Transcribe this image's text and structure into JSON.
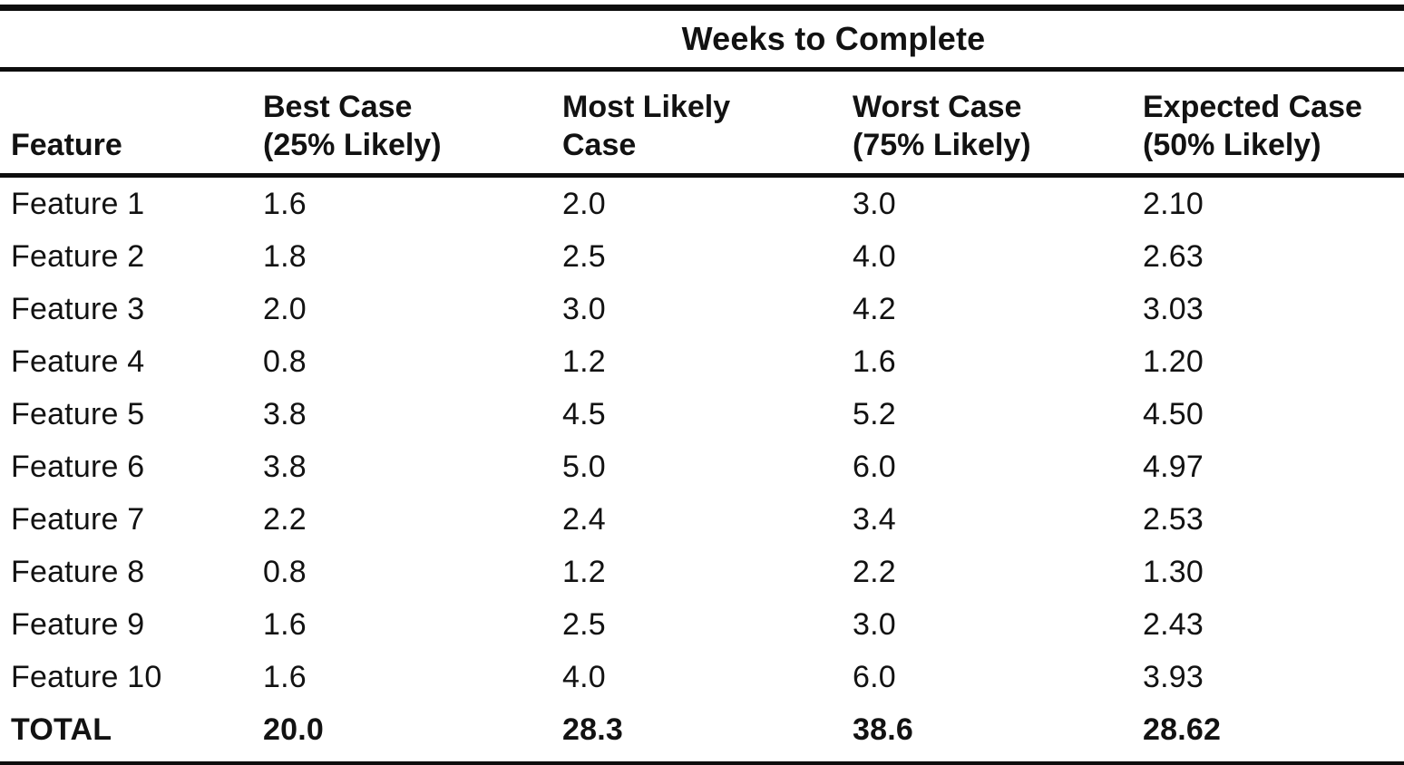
{
  "table": {
    "spanner_title": "Weeks to Complete",
    "columns": [
      {
        "label": "Feature"
      },
      {
        "line1": "Best Case",
        "line2": "(25% Likely)"
      },
      {
        "line1": "Most Likely",
        "line2": "Case"
      },
      {
        "line1": "Worst Case",
        "line2": "(75% Likely)"
      },
      {
        "line1": "Expected Case",
        "line2": "(50% Likely)"
      }
    ],
    "rows": [
      {
        "feature": "Feature 1",
        "best": "1.6",
        "most_likely": "2.0",
        "worst": "3.0",
        "expected": "2.10"
      },
      {
        "feature": "Feature 2",
        "best": "1.8",
        "most_likely": "2.5",
        "worst": "4.0",
        "expected": "2.63"
      },
      {
        "feature": "Feature 3",
        "best": "2.0",
        "most_likely": "3.0",
        "worst": "4.2",
        "expected": "3.03"
      },
      {
        "feature": "Feature 4",
        "best": "0.8",
        "most_likely": "1.2",
        "worst": "1.6",
        "expected": "1.20"
      },
      {
        "feature": "Feature 5",
        "best": "3.8",
        "most_likely": "4.5",
        "worst": "5.2",
        "expected": "4.50"
      },
      {
        "feature": "Feature 6",
        "best": "3.8",
        "most_likely": "5.0",
        "worst": "6.0",
        "expected": "4.97"
      },
      {
        "feature": "Feature 7",
        "best": "2.2",
        "most_likely": "2.4",
        "worst": "3.4",
        "expected": "2.53"
      },
      {
        "feature": "Feature 8",
        "best": "0.8",
        "most_likely": "1.2",
        "worst": "2.2",
        "expected": "1.30"
      },
      {
        "feature": "Feature 9",
        "best": "1.6",
        "most_likely": "2.5",
        "worst": "3.0",
        "expected": "2.43"
      },
      {
        "feature": "Feature 10",
        "best": "1.6",
        "most_likely": "4.0",
        "worst": "6.0",
        "expected": "3.93"
      }
    ],
    "total": {
      "feature": "TOTAL",
      "best": "20.0",
      "most_likely": "28.3",
      "worst": "38.6",
      "expected": "28.62"
    }
  },
  "colors": {
    "ink": "#0d0d0d",
    "paper": "#ffffff"
  }
}
